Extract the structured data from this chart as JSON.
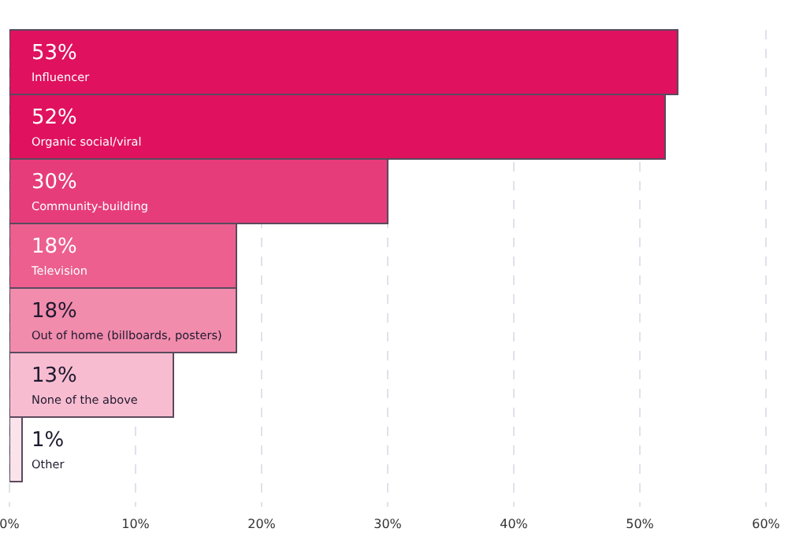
{
  "chart_data": {
    "type": "bar",
    "orientation": "horizontal",
    "categories": [
      "Influencer",
      "Organic social/viral",
      "Community-building",
      "Television",
      "Out of home (billboards, posters)",
      "None of the above",
      "Other"
    ],
    "values": [
      53,
      52,
      30,
      18,
      18,
      13,
      1
    ],
    "value_labels": [
      "53%",
      "52%",
      "30%",
      "18%",
      "18%",
      "13%",
      "1%"
    ],
    "colors": [
      "#e0115f",
      "#e0115f",
      "#e63d7a",
      "#ec5f8f",
      "#f18cad",
      "#f8bcd1",
      "#fbe3ec"
    ],
    "xlim": [
      0,
      60
    ],
    "xticks": [
      {
        "value": 0,
        "label": "0%"
      },
      {
        "value": 10,
        "label": "10%"
      },
      {
        "value": 20,
        "label": "20%"
      },
      {
        "value": 30,
        "label": "30%"
      },
      {
        "value": 40,
        "label": "40%"
      },
      {
        "value": 50,
        "label": "50%"
      },
      {
        "value": 60,
        "label": "60%"
      }
    ],
    "grid": "x",
    "tick_labels": "x"
  }
}
